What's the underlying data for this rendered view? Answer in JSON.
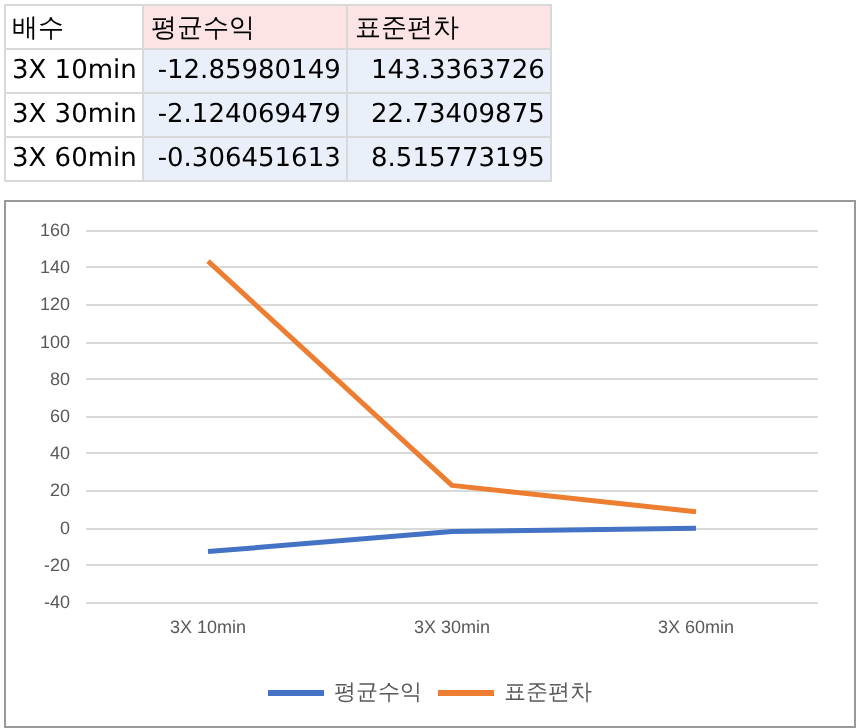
{
  "chart_data": [
    {
      "type": "other",
      "annotations": [
        "배수",
        "평균수익",
        "표준편차",
        "3X 10min",
        "-12.85980149",
        "143.3363726",
        "3X 30min",
        "-2.124069479",
        "22.73409875",
        "3X 60min",
        "-0.306451613",
        "8.515773195"
      ]
    },
    {
      "type": "line",
      "categories": [
        "3X 10min",
        "3X 30min",
        "3X 60min"
      ],
      "series": [
        {
          "name": "평균수익",
          "color": "#4472c4",
          "values": [
            -12.9,
            -2.1,
            -0.3
          ]
        },
        {
          "name": "표준편차",
          "color": "#ed7d31",
          "values": [
            143.3,
            22.7,
            8.5
          ]
        }
      ],
      "ylim": [
        -40,
        160
      ],
      "yticks": [
        -40,
        -20,
        0,
        20,
        40,
        60,
        80,
        100,
        120,
        140,
        160
      ],
      "grid": "y",
      "legend": "bottom",
      "marker": "none",
      "line_style": "solid"
    }
  ]
}
